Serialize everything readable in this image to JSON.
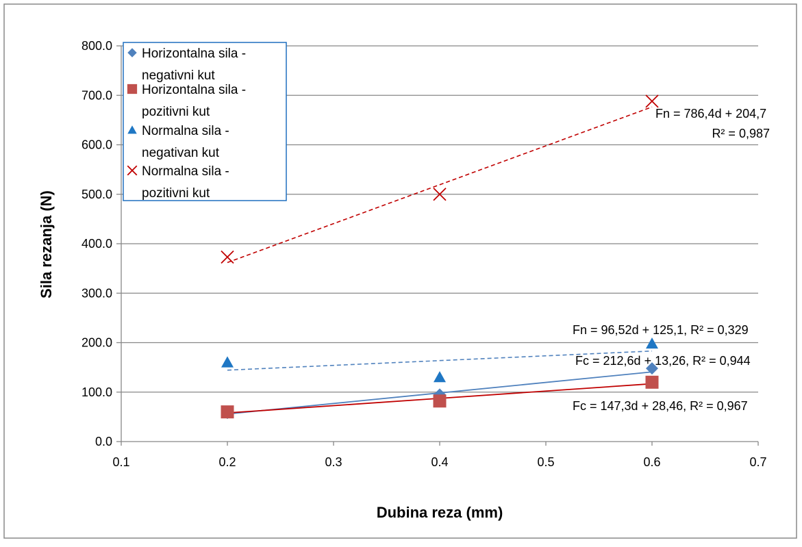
{
  "chart_data": {
    "type": "scatter",
    "xlabel": "Dubina reza (mm)",
    "ylabel": "Sila rezanja (N)",
    "xlim": [
      0.1,
      0.7
    ],
    "ylim": [
      0,
      800
    ],
    "x_ticks": [
      "0.1",
      "0.2",
      "0.3",
      "0.4",
      "0.5",
      "0.6",
      "0.7"
    ],
    "y_ticks": [
      "0.0",
      "100.0",
      "200.0",
      "300.0",
      "400.0",
      "500.0",
      "600.0",
      "700.0",
      "800.0"
    ],
    "grid": "horizontal",
    "legend_position": "top-left",
    "series": [
      {
        "name": [
          "Horizontalna sila -",
          "negativni kut"
        ],
        "marker": "diamond",
        "color": "#4f81bd",
        "x": [
          0.2,
          0.4,
          0.6
        ],
        "y": [
          58,
          95,
          148
        ],
        "trendline": {
          "slope": 212.6,
          "intercept": 13.26,
          "style": "solid",
          "color": "#4f81bd"
        }
      },
      {
        "name": [
          "Horizontalna sila -",
          "pozitivni kut"
        ],
        "marker": "square",
        "color": "#c0504d",
        "x": [
          0.2,
          0.4,
          0.6
        ],
        "y": [
          60,
          82,
          120
        ],
        "trendline": {
          "slope": 147.3,
          "intercept": 28.46,
          "style": "solid",
          "color": "#c00000"
        }
      },
      {
        "name": [
          "Normalna sila -",
          "negativan kut"
        ],
        "marker": "triangle",
        "color": "#1f77c4",
        "x": [
          0.2,
          0.4,
          0.6
        ],
        "y": [
          160,
          130,
          198
        ],
        "trendline": {
          "slope": 96.52,
          "intercept": 125.1,
          "style": "dashed",
          "color": "#4f81bd"
        }
      },
      {
        "name": [
          "Normalna sila -",
          "pozitivni kut"
        ],
        "marker": "cross",
        "color": "#c00000",
        "x": [
          0.2,
          0.4,
          0.6
        ],
        "y": [
          373,
          500,
          688
        ],
        "trendline": {
          "slope": 786.4,
          "intercept": 204.7,
          "style": "dashed",
          "color": "#c00000"
        }
      }
    ],
    "annotations": [
      "Fn = 786,4d + 204,7",
      "R² = 0,987",
      "Fn = 96,52d + 125,1, R² = 0,329",
      "Fc = 212,6d + 13,26, R² = 0,944",
      "Fc = 147,3d + 28,46, R² = 0,967"
    ]
  }
}
